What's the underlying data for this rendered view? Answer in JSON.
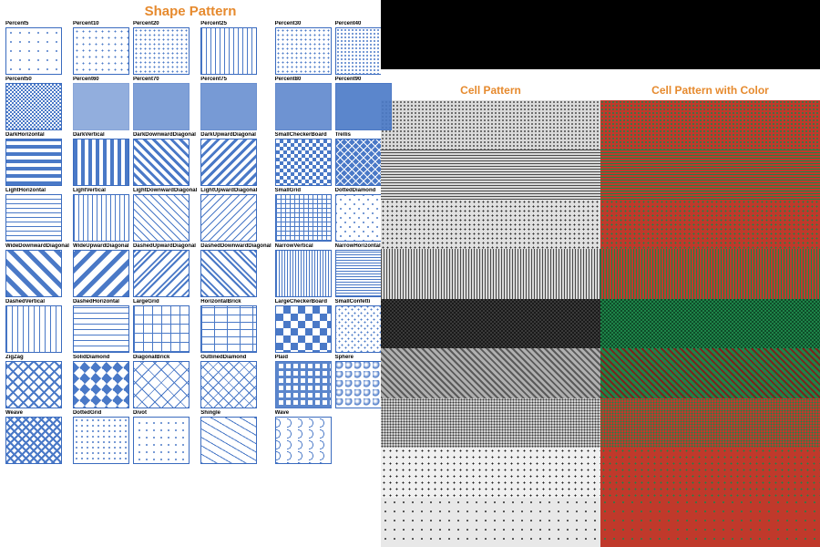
{
  "titles": {
    "shape_pattern": "Shape Pattern",
    "cell_pattern": "Cell Pattern",
    "cell_pattern_color": "Cell Pattern with Color",
    "title_color": "#e68a2e"
  },
  "colors": {
    "swatch_primary": "#4a79c7",
    "swatch_bg": "#ffffff",
    "swatch_border": "#3a6bbf",
    "right_gray_fg": "#4a4a4a",
    "right_gray_bg": "#d9d9d9",
    "right_color_red": "#c0392b",
    "right_color_green": "#1e8449",
    "right_color_red_dark": "#7b241c"
  },
  "shape_patterns": [
    {
      "id": "Percent5",
      "label": "Percent5",
      "type": "dots",
      "density": 0.05
    },
    {
      "id": "Percent10",
      "label": "Percent10",
      "type": "dots",
      "density": 0.1
    },
    {
      "id": "Percent20",
      "label": "Percent20",
      "type": "dots",
      "density": 0.2
    },
    {
      "id": "Percent25",
      "label": "Percent25",
      "type": "vlines",
      "spacing": 4
    },
    {
      "id": "Percent30",
      "label": "Percent30",
      "type": "dots",
      "density": 0.3
    },
    {
      "id": "Percent40",
      "label": "Percent40",
      "type": "dots",
      "density": 0.4
    },
    {
      "id": "Percent50",
      "label": "Percent50",
      "type": "checker",
      "size": 2
    },
    {
      "id": "Percent60",
      "label": "Percent60",
      "type": "fill",
      "alpha": 0.6
    },
    {
      "id": "Percent70",
      "label": "Percent70",
      "type": "fill",
      "alpha": 0.7
    },
    {
      "id": "Percent75",
      "label": "Percent75",
      "type": "fill",
      "alpha": 0.75
    },
    {
      "id": "Percent80",
      "label": "Percent80",
      "type": "fill",
      "alpha": 0.8
    },
    {
      "id": "Percent90",
      "label": "Percent90",
      "type": "fill",
      "alpha": 0.9
    },
    {
      "id": "DarkHorizontal",
      "label": "DarkHorizontal",
      "type": "hlines",
      "width": 4,
      "gap": 4
    },
    {
      "id": "DarkVertical",
      "label": "DarkVertical",
      "type": "vlines",
      "width": 4,
      "gap": 4
    },
    {
      "id": "DarkDownwardDiagonal",
      "label": "DarkDownwardDiagonal",
      "type": "diag",
      "dir": "down",
      "width": 3,
      "gap": 4
    },
    {
      "id": "DarkUpwardDiagonal",
      "label": "DarkUpwardDiagonal",
      "type": "diag",
      "dir": "up",
      "width": 3,
      "gap": 4
    },
    {
      "id": "SmallCheckerBoard",
      "label": "SmallCheckerBoard",
      "type": "checker",
      "size": 4
    },
    {
      "id": "Trellis",
      "label": "Trellis",
      "type": "trellis",
      "size": 6
    },
    {
      "id": "LightHorizontal",
      "label": "LightHorizontal",
      "type": "hlines",
      "width": 1,
      "gap": 4
    },
    {
      "id": "LightVertical",
      "label": "LightVertical",
      "type": "vlines",
      "width": 1,
      "gap": 4
    },
    {
      "id": "LightDownwardDiagonal",
      "label": "LightDownwardDiagonal",
      "type": "diag",
      "dir": "down",
      "width": 1,
      "gap": 5
    },
    {
      "id": "LightUpwardDiagonal",
      "label": "LightUpwardDiagonal",
      "type": "diag",
      "dir": "up",
      "width": 1,
      "gap": 5
    },
    {
      "id": "SmallGrid",
      "label": "SmallGrid",
      "type": "grid",
      "size": 5
    },
    {
      "id": "DottedDiamond",
      "label": "DottedDiamond",
      "type": "dotdiamond",
      "size": 8
    },
    {
      "id": "WideDownwardDiagonal",
      "label": "WideDownwardDiagonal",
      "type": "diag",
      "dir": "down",
      "width": 5,
      "gap": 7
    },
    {
      "id": "WideUpwardDiagonal",
      "label": "WideUpwardDiagonal",
      "type": "diag",
      "dir": "up",
      "width": 5,
      "gap": 7
    },
    {
      "id": "DashedUpwardDiagonal",
      "label": "DashedUpwardDiagonal",
      "type": "dashdiag",
      "dir": "up"
    },
    {
      "id": "DashedDownwardDiagonal",
      "label": "DashedDownwardDiagonal",
      "type": "dashdiag",
      "dir": "down"
    },
    {
      "id": "NarrowVertical",
      "label": "NarrowVertical",
      "type": "vlines",
      "width": 1,
      "gap": 2
    },
    {
      "id": "NarrowHorizontal",
      "label": "NarrowHorizontal",
      "type": "hlines",
      "width": 1,
      "gap": 2
    },
    {
      "id": "DashedVertical",
      "label": "DashedVertical",
      "type": "dashv"
    },
    {
      "id": "DashedHorizontal",
      "label": "DashedHorizontal",
      "type": "dashh"
    },
    {
      "id": "LargeGrid",
      "label": "LargeGrid",
      "type": "grid",
      "size": 10
    },
    {
      "id": "HorizontalBrick",
      "label": "HorizontalBrick",
      "type": "brick"
    },
    {
      "id": "LargeCheckerBoard",
      "label": "LargeCheckerBoard",
      "type": "checker",
      "size": 8
    },
    {
      "id": "SmallConfetti",
      "label": "SmallConfetti",
      "type": "confetti",
      "size": "small"
    },
    {
      "id": "ZigZag",
      "label": "ZigZag",
      "type": "zigzag"
    },
    {
      "id": "SolidDiamond",
      "label": "SolidDiamond",
      "type": "soliddiamond"
    },
    {
      "id": "DiagonalBrick",
      "label": "DiagonalBrick",
      "type": "diagbrick"
    },
    {
      "id": "OutlinedDiamond",
      "label": "OutlinedDiamond",
      "type": "outlinediamond"
    },
    {
      "id": "Plaid",
      "label": "Plaid",
      "type": "plaid"
    },
    {
      "id": "Sphere",
      "label": "Sphere",
      "type": "sphere"
    },
    {
      "id": "Weave",
      "label": "Weave",
      "type": "weave"
    },
    {
      "id": "DottedGrid",
      "label": "DottedGrid",
      "type": "dotgrid"
    },
    {
      "id": "Divot",
      "label": "Divot",
      "type": "divot"
    },
    {
      "id": "Shingle",
      "label": "Shingle",
      "type": "shingle"
    },
    {
      "id": "Wave",
      "label": "Wave",
      "type": "wave"
    }
  ],
  "cell_patterns_gray": [
    {
      "id": "g1",
      "type": "dots",
      "fg": "#4a4a4a",
      "bg": "#d9d9d9",
      "density": 0.5
    },
    {
      "id": "g2",
      "type": "hlines",
      "fg": "#4a4a4a",
      "bg": "#d9d9d9",
      "gap": 2
    },
    {
      "id": "g3",
      "type": "dots",
      "fg": "#2a2a2a",
      "bg": "#e0e0e0",
      "density": 0.25
    },
    {
      "id": "g4",
      "type": "vlines",
      "fg": "#4a4a4a",
      "bg": "#d9d9d9",
      "gap": 2
    },
    {
      "id": "g5",
      "type": "checker",
      "fg": "#1a1a1a",
      "bg": "#3a3a3a",
      "size": 2
    },
    {
      "id": "g6",
      "type": "diag",
      "fg": "#5a5a5a",
      "bg": "#b0b0b0",
      "gap": 3
    },
    {
      "id": "g7",
      "type": "dots",
      "fg": "#3a3a3a",
      "bg": "#d0d0d0",
      "density": 0.6
    },
    {
      "id": "g8",
      "type": "dots",
      "fg": "#1a1a1a",
      "bg": "#f0f0f0",
      "density": 0.15
    },
    {
      "id": "g9",
      "type": "dots",
      "fg": "#2a2a2a",
      "bg": "#e8e8e8",
      "density": 0.08
    }
  ],
  "cell_patterns_color": [
    {
      "id": "c1",
      "type": "dots",
      "fg": "#1e8449",
      "bg": "#c0392b",
      "density": 0.5
    },
    {
      "id": "c2",
      "type": "hlines",
      "fg": "#1e8449",
      "bg": "#c0392b",
      "gap": 2
    },
    {
      "id": "c3",
      "type": "dots",
      "fg": "#1e8449",
      "bg": "#c0392b",
      "density": 0.25
    },
    {
      "id": "c4",
      "type": "vlines",
      "fg": "#1e8449",
      "bg": "#c0392b",
      "gap": 2
    },
    {
      "id": "c5",
      "type": "checker",
      "fg": "#0e4d29",
      "bg": "#1e8449",
      "size": 2
    },
    {
      "id": "c6",
      "type": "diag",
      "fg": "#7b241c",
      "bg": "#1e8449",
      "gap": 3
    },
    {
      "id": "c7",
      "type": "dots",
      "fg": "#1e8449",
      "bg": "#c0392b",
      "density": 0.6
    },
    {
      "id": "c8",
      "type": "dots",
      "fg": "#1e8449",
      "bg": "#c0392b",
      "density": 0.15
    },
    {
      "id": "c9",
      "type": "dots",
      "fg": "#1e8449",
      "bg": "#c0392b",
      "density": 0.08
    }
  ]
}
